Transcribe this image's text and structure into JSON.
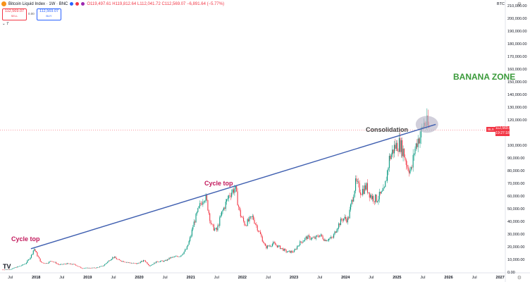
{
  "header": {
    "title": "Bitcoin Liquid Index · 1W · BNC",
    "ohlc": "O119,497.61 H119,812.64 L112,041.72 C112,569.07 −6,891.64 (−5.77%)",
    "ticker": "BTC"
  },
  "trade": {
    "sell_price": "112,569.07",
    "sell_label": "SELL",
    "spread": "0.00",
    "buy_price": "112,569.07",
    "buy_label": "BUY"
  },
  "indicators_toggle": "⌄ 7",
  "price_tag": {
    "symbol": "BLX",
    "price": "112,569.07",
    "countdown": "19:27:18"
  },
  "y_axis_labels": [
    {
      "text": "210,000.00",
      "value": 210000
    },
    {
      "text": "200,000.00",
      "value": 200000
    },
    {
      "text": "190,000.00",
      "value": 190000
    },
    {
      "text": "180,000.00",
      "value": 180000
    },
    {
      "text": "170,000.00",
      "value": 170000
    },
    {
      "text": "160,000.00",
      "value": 160000
    },
    {
      "text": "150,000.00",
      "value": 150000
    },
    {
      "text": "140,000.00",
      "value": 140000
    },
    {
      "text": "130,000.00",
      "value": 130000
    },
    {
      "text": "120,000.00",
      "value": 120000
    },
    {
      "text": "100,000.00",
      "value": 100000
    },
    {
      "text": "90,000.00",
      "value": 90000
    },
    {
      "text": "80,000.00",
      "value": 80000
    },
    {
      "text": "70,000.00",
      "value": 70000
    },
    {
      "text": "60,000.00",
      "value": 60000
    },
    {
      "text": "50,000.00",
      "value": 50000
    },
    {
      "text": "40,000.00",
      "value": 40000
    },
    {
      "text": "30,000.00",
      "value": 30000
    },
    {
      "text": "20,000.00",
      "value": 20000
    },
    {
      "text": "10,000.00",
      "value": 10000
    },
    {
      "text": "0.00",
      "value": 0
    }
  ],
  "x_axis_labels": [
    {
      "text": "Jul",
      "t": 2017.5,
      "year": false
    },
    {
      "text": "2018",
      "t": 2018.0,
      "year": true
    },
    {
      "text": "Jul",
      "t": 2018.5,
      "year": false
    },
    {
      "text": "2019",
      "t": 2019.0,
      "year": true
    },
    {
      "text": "Jul",
      "t": 2019.5,
      "year": false
    },
    {
      "text": "2020",
      "t": 2020.0,
      "year": true
    },
    {
      "text": "Jul",
      "t": 2020.5,
      "year": false
    },
    {
      "text": "2021",
      "t": 2021.0,
      "year": true
    },
    {
      "text": "Jul",
      "t": 2021.5,
      "year": false
    },
    {
      "text": "2022",
      "t": 2022.0,
      "year": true
    },
    {
      "text": "Jul",
      "t": 2022.5,
      "year": false
    },
    {
      "text": "2023",
      "t": 2023.0,
      "year": true
    },
    {
      "text": "Jul",
      "t": 2023.5,
      "year": false
    },
    {
      "text": "2024",
      "t": 2024.0,
      "year": true
    },
    {
      "text": "Jul",
      "t": 2024.5,
      "year": false
    },
    {
      "text": "2025",
      "t": 2025.0,
      "year": true
    },
    {
      "text": "Jul",
      "t": 2025.5,
      "year": false
    },
    {
      "text": "2026",
      "t": 2026.0,
      "year": true
    },
    {
      "text": "Jul",
      "t": 2026.5,
      "year": false
    },
    {
      "text": "2027",
      "t": 2027.0,
      "year": true
    }
  ],
  "annotations": {
    "cycle_top_1": "Cycle top",
    "cycle_top_2": "Cycle top",
    "consolidation": "Consolidation",
    "banana_zone": "BANANA ZONE"
  },
  "colors": {
    "up": "#089981",
    "down": "#f23645",
    "trendline": "#3f5fb0",
    "highlight": "#b9b6c8",
    "banana": "#3a9a3a"
  },
  "chart_data": {
    "type": "candlestick",
    "series_name": "Bitcoin Liquid Index",
    "interval": "1W",
    "x_range": [
      2017.3,
      2027.1
    ],
    "ylim": [
      0,
      215000
    ],
    "current_price": 112569.07,
    "price_path": [
      [
        2017.35,
        2500
      ],
      [
        2017.5,
        2700
      ],
      [
        2017.6,
        4300
      ],
      [
        2017.7,
        5500
      ],
      [
        2017.8,
        7500
      ],
      [
        2017.9,
        13000
      ],
      [
        2017.96,
        19200
      ],
      [
        2018.02,
        14000
      ],
      [
        2018.1,
        8000
      ],
      [
        2018.2,
        7500
      ],
      [
        2018.3,
        9500
      ],
      [
        2018.45,
        6300
      ],
      [
        2018.6,
        7200
      ],
      [
        2018.75,
        6500
      ],
      [
        2018.88,
        3700
      ],
      [
        2019.0,
        3800
      ],
      [
        2019.15,
        3900
      ],
      [
        2019.3,
        5500
      ],
      [
        2019.45,
        11000
      ],
      [
        2019.5,
        12500
      ],
      [
        2019.6,
        10000
      ],
      [
        2019.8,
        8000
      ],
      [
        2019.95,
        7200
      ],
      [
        2020.1,
        9800
      ],
      [
        2020.2,
        5500
      ],
      [
        2020.35,
        9000
      ],
      [
        2020.5,
        9300
      ],
      [
        2020.6,
        11800
      ],
      [
        2020.8,
        13500
      ],
      [
        2020.92,
        19000
      ],
      [
        2021.0,
        29000
      ],
      [
        2021.05,
        38000
      ],
      [
        2021.15,
        50000
      ],
      [
        2021.25,
        60000
      ],
      [
        2021.3,
        58000
      ],
      [
        2021.4,
        37000
      ],
      [
        2021.5,
        33000
      ],
      [
        2021.6,
        47000
      ],
      [
        2021.75,
        62000
      ],
      [
        2021.86,
        67000
      ],
      [
        2021.95,
        47000
      ],
      [
        2022.05,
        38000
      ],
      [
        2022.2,
        44000
      ],
      [
        2022.35,
        30000
      ],
      [
        2022.45,
        20000
      ],
      [
        2022.6,
        23000
      ],
      [
        2022.75,
        19500
      ],
      [
        2022.86,
        16500
      ],
      [
        2023.0,
        16700
      ],
      [
        2023.1,
        23000
      ],
      [
        2023.25,
        28000
      ],
      [
        2023.4,
        27000
      ],
      [
        2023.5,
        30000
      ],
      [
        2023.6,
        26000
      ],
      [
        2023.75,
        27500
      ],
      [
        2023.85,
        37000
      ],
      [
        2023.95,
        43000
      ],
      [
        2024.05,
        42000
      ],
      [
        2024.15,
        62000
      ],
      [
        2024.2,
        71000
      ],
      [
        2024.3,
        64000
      ],
      [
        2024.4,
        68000
      ],
      [
        2024.5,
        60000
      ],
      [
        2024.6,
        58000
      ],
      [
        2024.75,
        64000
      ],
      [
        2024.85,
        90000
      ],
      [
        2024.95,
        99000
      ],
      [
        2025.05,
        102000
      ],
      [
        2025.12,
        96000
      ],
      [
        2025.2,
        84000
      ],
      [
        2025.28,
        80000
      ],
      [
        2025.33,
        95000
      ],
      [
        2025.4,
        105000
      ],
      [
        2025.45,
        108000
      ],
      [
        2025.52,
        118000
      ],
      [
        2025.58,
        117000
      ],
      [
        2025.62,
        113000
      ]
    ],
    "trendline": {
      "from": [
        2017.9,
        19000
      ],
      "to": [
        2025.75,
        117000
      ]
    },
    "highlight_region": {
      "center": [
        2025.58,
        117000
      ]
    },
    "annotations": [
      {
        "text": "Cycle top",
        "x": 2017.96,
        "y": 19200
      },
      {
        "text": "Cycle top",
        "x": 2021.86,
        "y": 67000
      },
      {
        "text": "Consolidation",
        "x": 2024.95,
        "y": 104000
      },
      {
        "text": "BANANA ZONE",
        "x": 2025.9,
        "y": 155000
      }
    ]
  }
}
